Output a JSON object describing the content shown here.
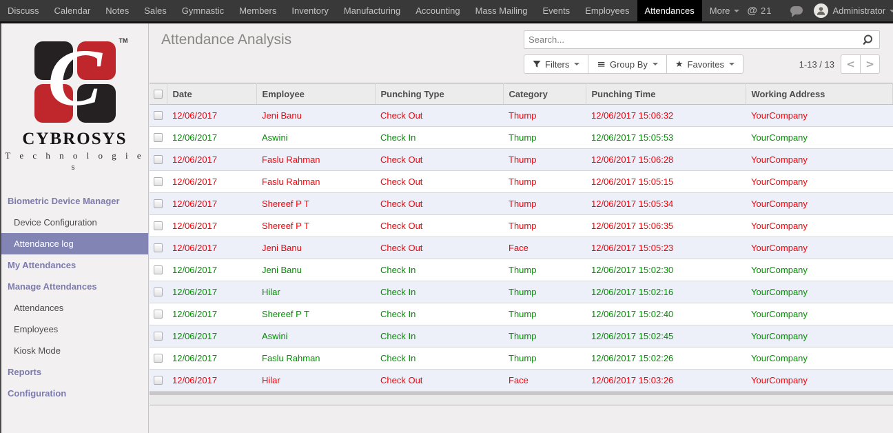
{
  "nav": {
    "items": [
      {
        "label": "Discuss"
      },
      {
        "label": "Calendar"
      },
      {
        "label": "Notes"
      },
      {
        "label": "Sales"
      },
      {
        "label": "Gymnastic"
      },
      {
        "label": "Members"
      },
      {
        "label": "Inventory"
      },
      {
        "label": "Manufacturing"
      },
      {
        "label": "Accounting"
      },
      {
        "label": "Mass Mailing"
      },
      {
        "label": "Events"
      },
      {
        "label": "Employees"
      },
      {
        "label": "Attendances",
        "active": true
      },
      {
        "label": "More",
        "caret": true
      }
    ],
    "mention_symbol": "@",
    "mention_count": "21",
    "user_name": "Administrator"
  },
  "sidebar": {
    "logo": {
      "monogram": "C",
      "tm": "TM",
      "name": "CYBROSYS",
      "subtitle": "T e c h n o l o g i e s"
    },
    "menu": [
      {
        "type": "heading",
        "label": "Biometric Device Manager"
      },
      {
        "type": "item",
        "label": "Device Configuration"
      },
      {
        "type": "item",
        "label": "Attendance log",
        "active": true
      },
      {
        "type": "heading",
        "label": "My Attendances"
      },
      {
        "type": "heading",
        "label": "Manage Attendances"
      },
      {
        "type": "item",
        "label": "Attendances"
      },
      {
        "type": "item",
        "label": "Employees"
      },
      {
        "type": "item",
        "label": "Kiosk Mode"
      },
      {
        "type": "heading",
        "label": "Reports"
      },
      {
        "type": "heading",
        "label": "Configuration"
      }
    ]
  },
  "content": {
    "title": "Attendance Analysis",
    "search": {
      "placeholder": "Search..."
    },
    "controls": {
      "filters_label": "Filters",
      "group_by_label": "Group By",
      "favorites_label": "Favorites"
    },
    "pager": {
      "range": "1-13 / 13",
      "prev": "<",
      "next": ">"
    }
  },
  "table": {
    "columns": [
      "Date",
      "Employee",
      "Punching Type",
      "Category",
      "Punching Time",
      "Working Address"
    ],
    "rows": [
      {
        "date": "12/06/2017",
        "employee": "Jeni Banu",
        "punching_type": "Check Out",
        "category": "Thump",
        "punching_time": "12/06/2017 15:06:32",
        "working_address": "YourCompany",
        "status": "out"
      },
      {
        "date": "12/06/2017",
        "employee": "Aswini",
        "punching_type": "Check In",
        "category": "Thump",
        "punching_time": "12/06/2017 15:05:53",
        "working_address": "YourCompany",
        "status": "in"
      },
      {
        "date": "12/06/2017",
        "employee": "Faslu Rahman",
        "punching_type": "Check Out",
        "category": "Thump",
        "punching_time": "12/06/2017 15:06:28",
        "working_address": "YourCompany",
        "status": "out"
      },
      {
        "date": "12/06/2017",
        "employee": "Faslu Rahman",
        "punching_type": "Check Out",
        "category": "Thump",
        "punching_time": "12/06/2017 15:05:15",
        "working_address": "YourCompany",
        "status": "out"
      },
      {
        "date": "12/06/2017",
        "employee": "Shereef P T",
        "punching_type": "Check Out",
        "category": "Thump",
        "punching_time": "12/06/2017 15:05:34",
        "working_address": "YourCompany",
        "status": "out"
      },
      {
        "date": "12/06/2017",
        "employee": "Shereef P T",
        "punching_type": "Check Out",
        "category": "Thump",
        "punching_time": "12/06/2017 15:06:35",
        "working_address": "YourCompany",
        "status": "out"
      },
      {
        "date": "12/06/2017",
        "employee": "Jeni Banu",
        "punching_type": "Check Out",
        "category": "Face",
        "punching_time": "12/06/2017 15:05:23",
        "working_address": "YourCompany",
        "status": "out"
      },
      {
        "date": "12/06/2017",
        "employee": "Jeni Banu",
        "punching_type": "Check In",
        "category": "Thump",
        "punching_time": "12/06/2017 15:02:30",
        "working_address": "YourCompany",
        "status": "in"
      },
      {
        "date": "12/06/2017",
        "employee": "Hilar",
        "punching_type": "Check In",
        "category": "Thump",
        "punching_time": "12/06/2017 15:02:16",
        "working_address": "YourCompany",
        "status": "in"
      },
      {
        "date": "12/06/2017",
        "employee": "Shereef P T",
        "punching_type": "Check In",
        "category": "Thump",
        "punching_time": "12/06/2017 15:02:40",
        "working_address": "YourCompany",
        "status": "in"
      },
      {
        "date": "12/06/2017",
        "employee": "Aswini",
        "punching_type": "Check In",
        "category": "Thump",
        "punching_time": "12/06/2017 15:02:45",
        "working_address": "YourCompany",
        "status": "in"
      },
      {
        "date": "12/06/2017",
        "employee": "Faslu Rahman",
        "punching_type": "Check In",
        "category": "Thump",
        "punching_time": "12/06/2017 15:02:26",
        "working_address": "YourCompany",
        "status": "in"
      },
      {
        "date": "12/06/2017",
        "employee": "Hilar",
        "punching_type": "Check Out",
        "category": "Face",
        "punching_time": "12/06/2017 15:03:26",
        "working_address": "YourCompany",
        "status": "out"
      }
    ]
  },
  "colors": {
    "accent": "#7c7bad",
    "sidebar_selected": "#8285b3",
    "check_in": "#009000",
    "check_out": "#fb0007",
    "nav_background": "#3a3939"
  }
}
